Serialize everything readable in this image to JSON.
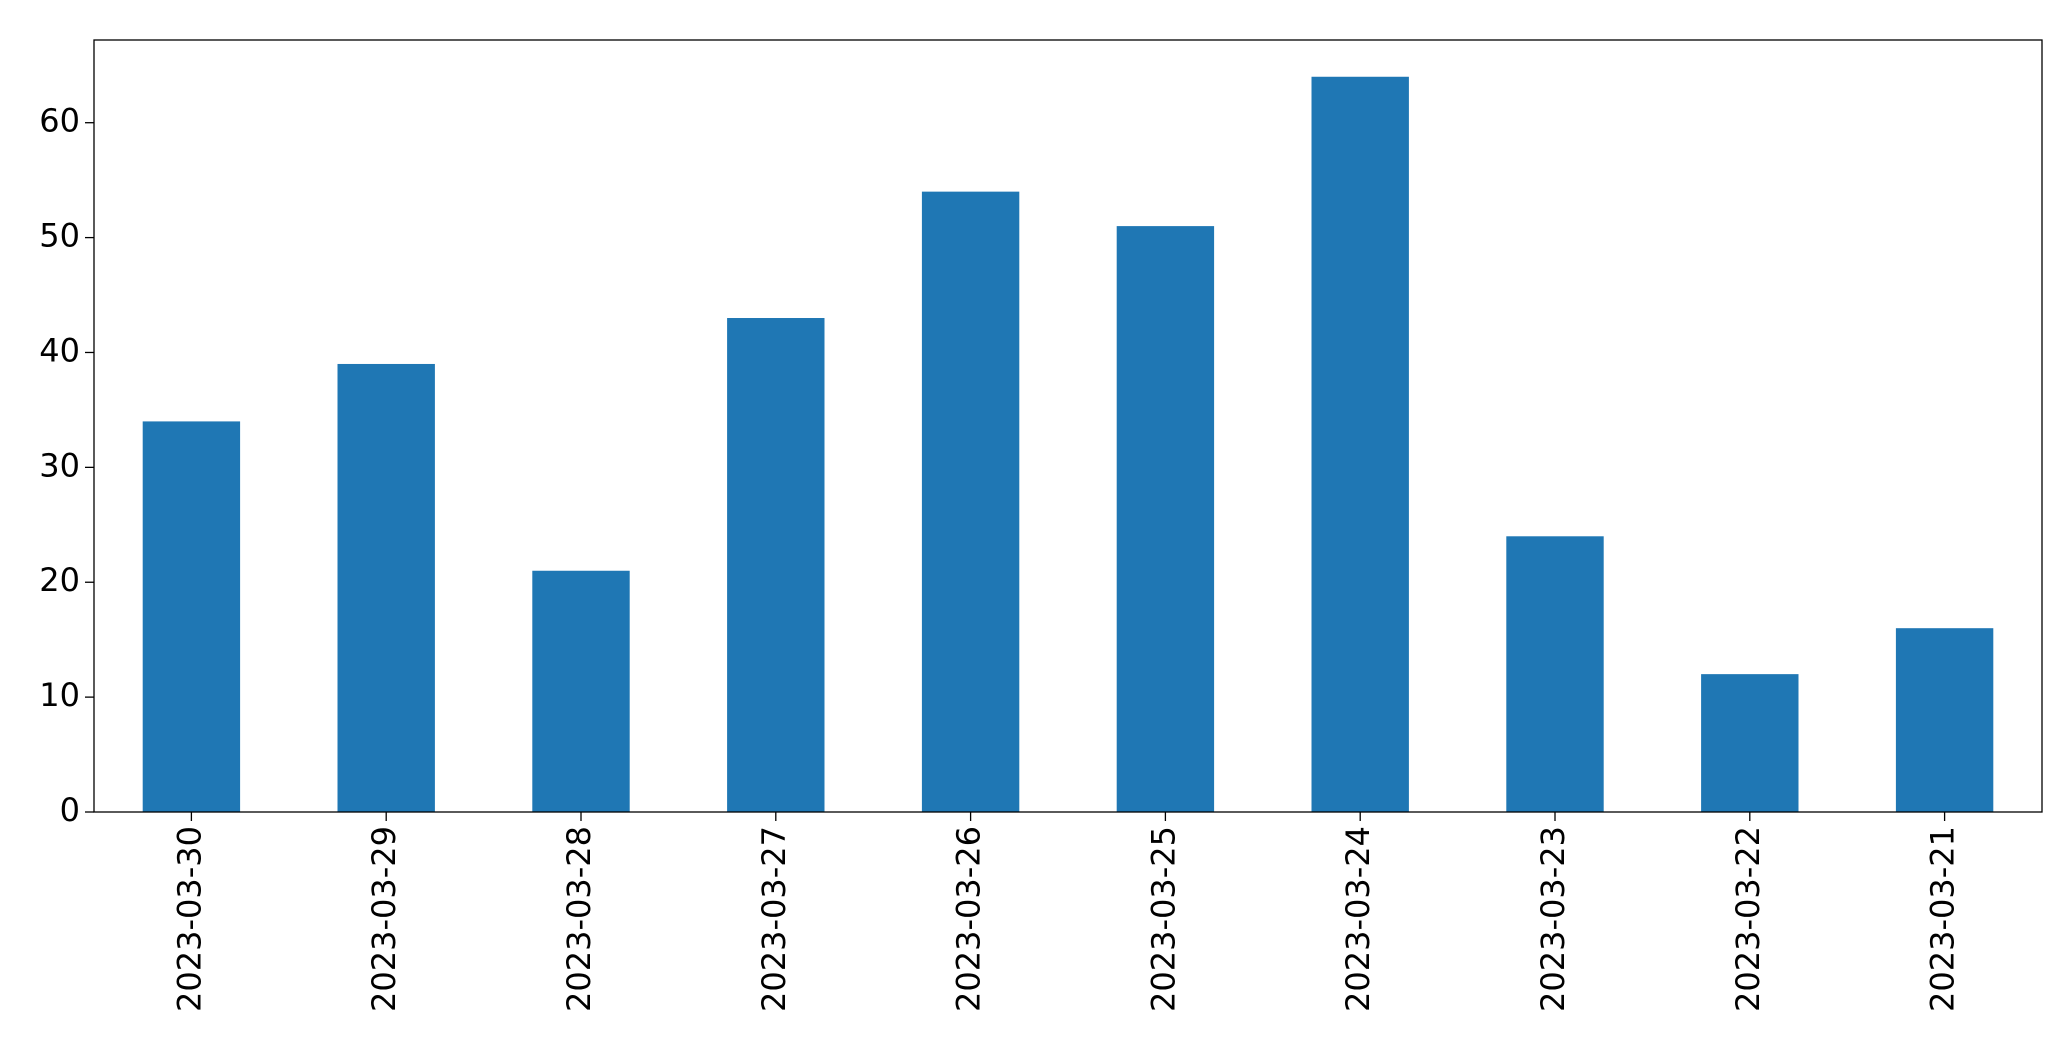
{
  "chart_data": {
    "type": "bar",
    "categories": [
      "2023-03-30",
      "2023-03-29",
      "2023-03-28",
      "2023-03-27",
      "2023-03-26",
      "2023-03-25",
      "2023-03-24",
      "2023-03-23",
      "2023-03-22",
      "2023-03-21"
    ],
    "values": [
      34,
      39,
      21,
      43,
      54,
      51,
      64,
      24,
      12,
      16
    ],
    "color": "#1f77b4",
    "ylim": [
      0,
      67.2
    ],
    "yticks": [
      0,
      10,
      20,
      30,
      40,
      50,
      60
    ],
    "grid": false
  }
}
